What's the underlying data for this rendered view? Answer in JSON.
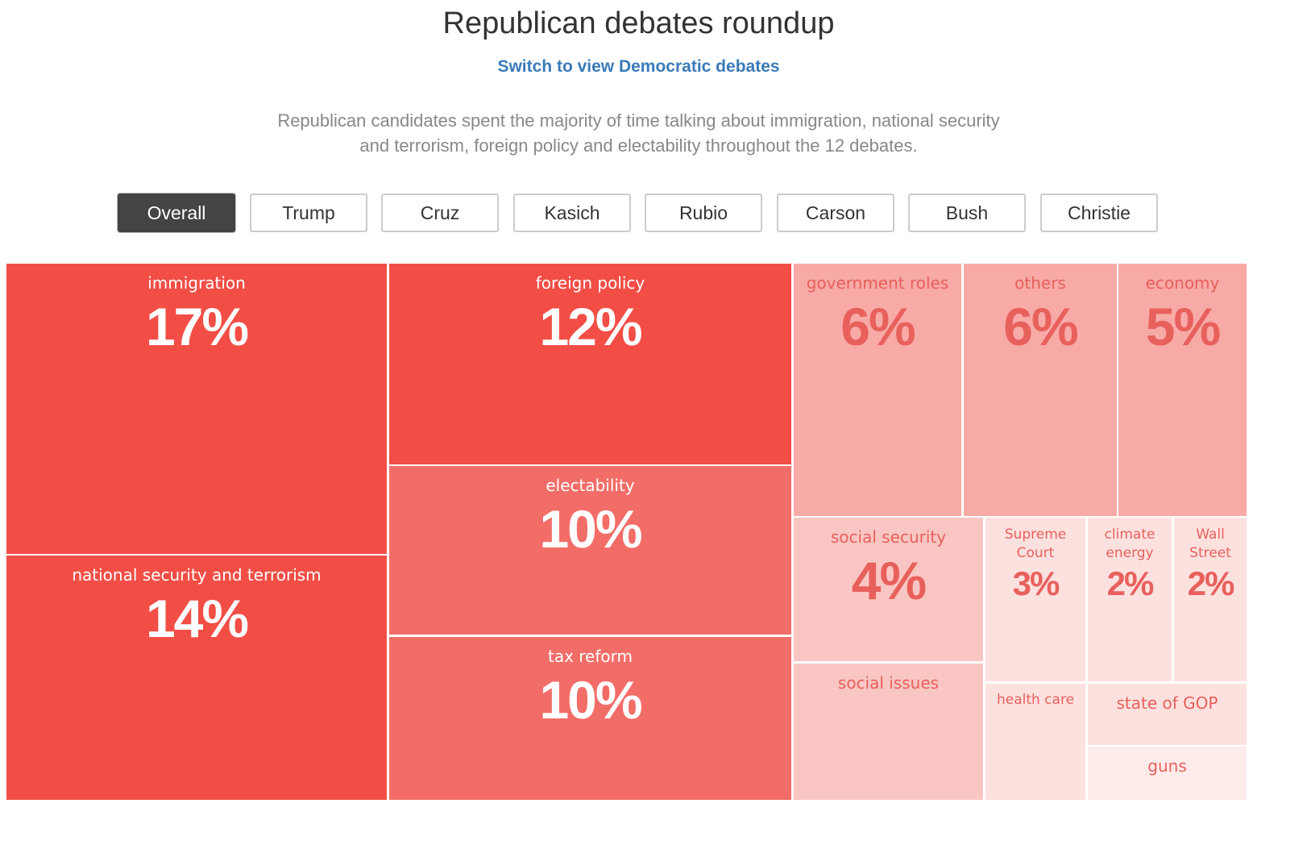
{
  "header": {
    "title": "Republican debates roundup",
    "switch_link": "Switch to view Democratic debates",
    "description": "Republican candidates spent the majority of time talking about immigration, national security and terrorism, foreign policy and electability throughout the 12 debates."
  },
  "filters": {
    "selected": "Overall",
    "buttons": [
      "Overall",
      "Trump",
      "Cruz",
      "Kasich",
      "Rubio",
      "Carson",
      "Bush",
      "Christie"
    ]
  },
  "colors": {
    "strong": "#f24e46",
    "medium": "#f36d68",
    "light": "#f7aaa6",
    "lighter": "#f9c6c3",
    "lightest": "#fde1df",
    "faint": "#fdebea",
    "text_dark": "#ffffff",
    "text_light": "#e8605c"
  },
  "chart_data": {
    "type": "treemap",
    "title": "Republican debates roundup",
    "items": [
      {
        "label": "immigration",
        "value": 17,
        "display": "17%"
      },
      {
        "label": "national security and terrorism",
        "value": 14,
        "display": "14%"
      },
      {
        "label": "foreign policy",
        "value": 12,
        "display": "12%"
      },
      {
        "label": "electability",
        "value": 10,
        "display": "10%"
      },
      {
        "label": "tax reform",
        "value": 10,
        "display": "10%"
      },
      {
        "label": "government roles",
        "value": 6,
        "display": "6%"
      },
      {
        "label": "others",
        "value": 6,
        "display": "6%"
      },
      {
        "label": "economy",
        "value": 5,
        "display": "5%"
      },
      {
        "label": "social security",
        "value": 4,
        "display": "4%"
      },
      {
        "label": "Supreme Court",
        "value": 3,
        "display": "3%"
      },
      {
        "label": "climate energy",
        "value": 2,
        "display": "2%"
      },
      {
        "label": "Wall Street",
        "value": 2,
        "display": "2%"
      },
      {
        "label": "social issues",
        "value": null,
        "display": ""
      },
      {
        "label": "health care",
        "value": null,
        "display": ""
      },
      {
        "label": "state of GOP",
        "value": null,
        "display": ""
      },
      {
        "label": "guns",
        "value": null,
        "display": ""
      }
    ]
  }
}
